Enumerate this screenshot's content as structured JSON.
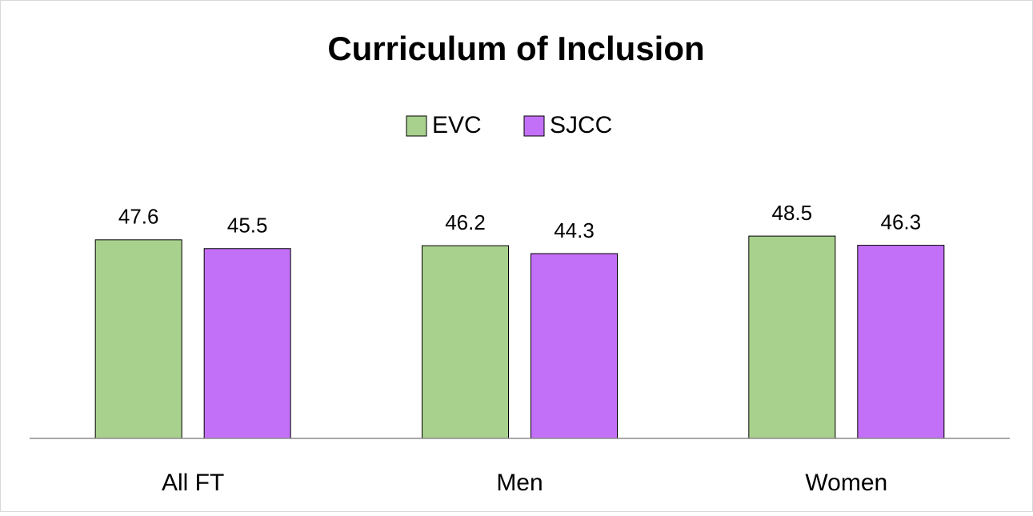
{
  "chart_data": {
    "type": "bar",
    "title": "Curriculum of Inclusion",
    "categories": [
      "All FT",
      "Men",
      "Women"
    ],
    "series": [
      {
        "name": "EVC",
        "color": "#a9d18e",
        "values": [
          47.6,
          46.2,
          48.5
        ]
      },
      {
        "name": "SJCC",
        "color": "#c370f8",
        "values": [
          45.5,
          44.3,
          46.3
        ]
      }
    ],
    "ylim": [
      0,
      70
    ],
    "legend": "top",
    "grid": false
  }
}
